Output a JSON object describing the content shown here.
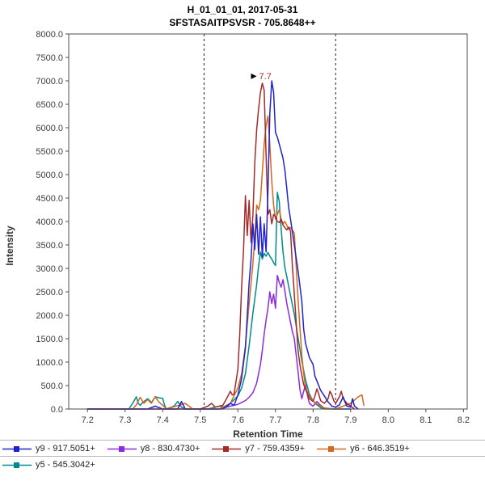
{
  "header": {
    "title_line1": "H_01_01_01, 2017-05-31",
    "title_line2": "SFSTASAITPSVSR - 705.8648++"
  },
  "chart_data": {
    "type": "line",
    "title": "H_01_01_01, 2017-05-31",
    "subtitle": "SFSTASAITPSVSR - 705.8648++",
    "xlabel": "Retention Time",
    "ylabel": "Intensity",
    "xlim": [
      7.15,
      8.21
    ],
    "ylim": [
      0,
      8000
    ],
    "grid": false,
    "legend_position": "bottom",
    "x_ticks": [
      "7.2",
      "7.3",
      "7.4",
      "7.5",
      "7.6",
      "7.7",
      "7.8",
      "7.9",
      "8.0",
      "8.1",
      "8.2"
    ],
    "y_ticks": [
      "0.0",
      "500.0",
      "1000.0",
      "1500.0",
      "2000.0",
      "2500.0",
      "3000.0",
      "3500.0",
      "4000.0",
      "4500.0",
      "5000.0",
      "5500.0",
      "6000.0",
      "6500.0",
      "7000.0",
      "7500.0",
      "8000.0"
    ],
    "boundaries": [
      7.51,
      7.86
    ],
    "annotation": {
      "text": "7.7",
      "x": 7.665,
      "y": 6950,
      "arrow": "triangle-right",
      "color": "#A52A2A"
    },
    "draw_order": [
      1,
      4,
      3,
      2,
      0
    ],
    "legend_rows": [
      [
        0,
        1,
        2,
        3
      ],
      [
        4
      ]
    ],
    "series": [
      {
        "id": "y9",
        "name": "y9 - 917.5051+",
        "color": "#2222CC",
        "points": [
          [
            7.2,
            0
          ],
          [
            7.3,
            0
          ],
          [
            7.36,
            0
          ],
          [
            7.38,
            60
          ],
          [
            7.4,
            0
          ],
          [
            7.44,
            0
          ],
          [
            7.45,
            160
          ],
          [
            7.46,
            0
          ],
          [
            7.52,
            0
          ],
          [
            7.56,
            0
          ],
          [
            7.58,
            120
          ],
          [
            7.59,
            80
          ],
          [
            7.6,
            300
          ],
          [
            7.61,
            650
          ],
          [
            7.62,
            1300
          ],
          [
            7.63,
            2700
          ],
          [
            7.635,
            3200
          ],
          [
            7.64,
            3950
          ],
          [
            7.645,
            3400
          ],
          [
            7.65,
            4150
          ],
          [
            7.655,
            3300
          ],
          [
            7.66,
            4100
          ],
          [
            7.665,
            3250
          ],
          [
            7.67,
            3950
          ],
          [
            7.675,
            3350
          ],
          [
            7.68,
            4650
          ],
          [
            7.685,
            6300
          ],
          [
            7.69,
            7000
          ],
          [
            7.695,
            6750
          ],
          [
            7.7,
            5900
          ],
          [
            7.705,
            5800
          ],
          [
            7.71,
            5650
          ],
          [
            7.715,
            5500
          ],
          [
            7.72,
            5350
          ],
          [
            7.725,
            5100
          ],
          [
            7.73,
            4700
          ],
          [
            7.735,
            4300
          ],
          [
            7.74,
            4050
          ],
          [
            7.75,
            3500
          ],
          [
            7.76,
            2950
          ],
          [
            7.77,
            2300
          ],
          [
            7.775,
            1700
          ],
          [
            7.78,
            1400
          ],
          [
            7.79,
            1100
          ],
          [
            7.8,
            950
          ],
          [
            7.805,
            700
          ],
          [
            7.81,
            600
          ],
          [
            7.82,
            400
          ],
          [
            7.83,
            280
          ],
          [
            7.84,
            150
          ],
          [
            7.85,
            60
          ],
          [
            7.86,
            40
          ],
          [
            7.87,
            90
          ],
          [
            7.88,
            260
          ],
          [
            7.885,
            150
          ],
          [
            7.89,
            60
          ],
          [
            7.9,
            40
          ],
          [
            7.905,
            220
          ],
          [
            7.91,
            60
          ],
          [
            7.92,
            0
          ]
        ]
      },
      {
        "id": "y8",
        "name": "y8 - 830.4730+",
        "color": "#8A2BE2",
        "points": [
          [
            7.2,
            0
          ],
          [
            7.5,
            0
          ],
          [
            7.55,
            0
          ],
          [
            7.58,
            60
          ],
          [
            7.6,
            100
          ],
          [
            7.62,
            180
          ],
          [
            7.63,
            250
          ],
          [
            7.64,
            350
          ],
          [
            7.65,
            550
          ],
          [
            7.66,
            950
          ],
          [
            7.665,
            1250
          ],
          [
            7.67,
            1600
          ],
          [
            7.675,
            1900
          ],
          [
            7.68,
            2150
          ],
          [
            7.685,
            2500
          ],
          [
            7.69,
            2250
          ],
          [
            7.695,
            2450
          ],
          [
            7.7,
            2150
          ],
          [
            7.705,
            2850
          ],
          [
            7.71,
            2700
          ],
          [
            7.715,
            2600
          ],
          [
            7.72,
            2760
          ],
          [
            7.725,
            2520
          ],
          [
            7.73,
            2250
          ],
          [
            7.735,
            2050
          ],
          [
            7.74,
            1850
          ],
          [
            7.745,
            1650
          ],
          [
            7.75,
            1500
          ],
          [
            7.755,
            1150
          ],
          [
            7.76,
            800
          ],
          [
            7.765,
            420
          ],
          [
            7.77,
            220
          ],
          [
            7.775,
            380
          ],
          [
            7.78,
            520
          ],
          [
            7.785,
            300
          ],
          [
            7.79,
            120
          ],
          [
            7.8,
            60
          ],
          [
            7.81,
            160
          ],
          [
            7.82,
            80
          ],
          [
            7.83,
            20
          ],
          [
            7.85,
            0
          ],
          [
            7.9,
            0
          ]
        ]
      },
      {
        "id": "y7",
        "name": "y7 - 759.4359+",
        "color": "#A52A2A",
        "points": [
          [
            7.2,
            0
          ],
          [
            7.5,
            0
          ],
          [
            7.52,
            60
          ],
          [
            7.53,
            120
          ],
          [
            7.54,
            40
          ],
          [
            7.56,
            80
          ],
          [
            7.57,
            220
          ],
          [
            7.58,
            380
          ],
          [
            7.585,
            300
          ],
          [
            7.59,
            320
          ],
          [
            7.6,
            850
          ],
          [
            7.605,
            1600
          ],
          [
            7.61,
            2600
          ],
          [
            7.615,
            3400
          ],
          [
            7.62,
            4550
          ],
          [
            7.625,
            3700
          ],
          [
            7.63,
            4450
          ],
          [
            7.635,
            3550
          ],
          [
            7.64,
            4150
          ],
          [
            7.645,
            5250
          ],
          [
            7.65,
            5950
          ],
          [
            7.655,
            6400
          ],
          [
            7.66,
            6750
          ],
          [
            7.665,
            6950
          ],
          [
            7.67,
            6800
          ],
          [
            7.675,
            5400
          ],
          [
            7.68,
            4150
          ],
          [
            7.685,
            4250
          ],
          [
            7.69,
            3950
          ],
          [
            7.695,
            4150
          ],
          [
            7.7,
            4100
          ],
          [
            7.705,
            4000
          ],
          [
            7.71,
            3980
          ],
          [
            7.715,
            4050
          ],
          [
            7.72,
            3920
          ],
          [
            7.725,
            3870
          ],
          [
            7.73,
            3820
          ],
          [
            7.735,
            3880
          ],
          [
            7.74,
            3800
          ],
          [
            7.745,
            3050
          ],
          [
            7.75,
            2450
          ],
          [
            7.755,
            1850
          ],
          [
            7.76,
            1250
          ],
          [
            7.765,
            950
          ],
          [
            7.77,
            720
          ],
          [
            7.775,
            520
          ],
          [
            7.78,
            420
          ],
          [
            7.785,
            320
          ],
          [
            7.79,
            220
          ],
          [
            7.8,
            160
          ],
          [
            7.805,
            280
          ],
          [
            7.81,
            430
          ],
          [
            7.815,
            320
          ],
          [
            7.82,
            180
          ],
          [
            7.83,
            120
          ],
          [
            7.84,
            220
          ],
          [
            7.845,
            380
          ],
          [
            7.85,
            300
          ],
          [
            7.855,
            180
          ],
          [
            7.86,
            120
          ],
          [
            7.87,
            260
          ],
          [
            7.875,
            380
          ],
          [
            7.88,
            220
          ],
          [
            7.89,
            120
          ],
          [
            7.9,
            60
          ],
          [
            7.91,
            0
          ]
        ]
      },
      {
        "id": "y6",
        "name": "y6 - 646.3519+",
        "color": "#D2691E",
        "points": [
          [
            7.2,
            0
          ],
          [
            7.32,
            0
          ],
          [
            7.33,
            90
          ],
          [
            7.34,
            250
          ],
          [
            7.35,
            120
          ],
          [
            7.36,
            200
          ],
          [
            7.37,
            120
          ],
          [
            7.38,
            260
          ],
          [
            7.39,
            150
          ],
          [
            7.4,
            80
          ],
          [
            7.41,
            0
          ],
          [
            7.46,
            120
          ],
          [
            7.47,
            60
          ],
          [
            7.48,
            0
          ],
          [
            7.55,
            0
          ],
          [
            7.58,
            120
          ],
          [
            7.6,
            450
          ],
          [
            7.61,
            750
          ],
          [
            7.62,
            1350
          ],
          [
            7.63,
            2250
          ],
          [
            7.64,
            3100
          ],
          [
            7.645,
            3650
          ],
          [
            7.65,
            4350
          ],
          [
            7.655,
            4250
          ],
          [
            7.66,
            4450
          ],
          [
            7.665,
            5050
          ],
          [
            7.67,
            5650
          ],
          [
            7.675,
            6050
          ],
          [
            7.68,
            6250
          ],
          [
            7.685,
            5650
          ],
          [
            7.69,
            4850
          ],
          [
            7.695,
            4350
          ],
          [
            7.7,
            4050
          ],
          [
            7.705,
            4150
          ],
          [
            7.71,
            4250
          ],
          [
            7.715,
            4050
          ],
          [
            7.72,
            3950
          ],
          [
            7.725,
            4000
          ],
          [
            7.73,
            3920
          ],
          [
            7.735,
            3830
          ],
          [
            7.74,
            3870
          ],
          [
            7.745,
            3820
          ],
          [
            7.75,
            3750
          ],
          [
            7.755,
            3050
          ],
          [
            7.76,
            2350
          ],
          [
            7.765,
            1750
          ],
          [
            7.77,
            1150
          ],
          [
            7.775,
            750
          ],
          [
            7.78,
            450
          ],
          [
            7.79,
            280
          ],
          [
            7.8,
            170
          ],
          [
            7.81,
            110
          ],
          [
            7.82,
            60
          ],
          [
            7.83,
            20
          ],
          [
            7.86,
            0
          ],
          [
            7.9,
            120
          ],
          [
            7.92,
            260
          ],
          [
            7.93,
            300
          ],
          [
            7.935,
            80
          ]
        ]
      },
      {
        "id": "y5",
        "name": "y5 - 545.3042+",
        "color": "#008B8B",
        "points": [
          [
            7.2,
            0
          ],
          [
            7.31,
            0
          ],
          [
            7.32,
            120
          ],
          [
            7.33,
            260
          ],
          [
            7.335,
            120
          ],
          [
            7.34,
            80
          ],
          [
            7.35,
            160
          ],
          [
            7.36,
            220
          ],
          [
            7.37,
            140
          ],
          [
            7.38,
            260
          ],
          [
            7.39,
            240
          ],
          [
            7.4,
            230
          ],
          [
            7.405,
            80
          ],
          [
            7.41,
            0
          ],
          [
            7.43,
            60
          ],
          [
            7.44,
            160
          ],
          [
            7.45,
            40
          ],
          [
            7.46,
            0
          ],
          [
            7.52,
            0
          ],
          [
            7.55,
            60
          ],
          [
            7.57,
            40
          ],
          [
            7.58,
            120
          ],
          [
            7.6,
            280
          ],
          [
            7.61,
            450
          ],
          [
            7.62,
            750
          ],
          [
            7.63,
            1350
          ],
          [
            7.64,
            2050
          ],
          [
            7.65,
            2650
          ],
          [
            7.655,
            3050
          ],
          [
            7.66,
            3350
          ],
          [
            7.665,
            3200
          ],
          [
            7.67,
            3320
          ],
          [
            7.675,
            3260
          ],
          [
            7.68,
            3340
          ],
          [
            7.685,
            3260
          ],
          [
            7.69,
            3200
          ],
          [
            7.695,
            3120
          ],
          [
            7.7,
            3060
          ],
          [
            7.705,
            4620
          ],
          [
            7.71,
            4420
          ],
          [
            7.715,
            3850
          ],
          [
            7.72,
            3350
          ],
          [
            7.725,
            3020
          ],
          [
            7.73,
            2820
          ],
          [
            7.735,
            2620
          ],
          [
            7.74,
            2420
          ],
          [
            7.75,
            2020
          ],
          [
            7.76,
            1520
          ],
          [
            7.77,
            1020
          ],
          [
            7.78,
            620
          ],
          [
            7.79,
            320
          ],
          [
            7.8,
            170
          ],
          [
            7.81,
            90
          ],
          [
            7.82,
            30
          ],
          [
            7.83,
            0
          ],
          [
            7.9,
            0
          ]
        ]
      }
    ]
  }
}
